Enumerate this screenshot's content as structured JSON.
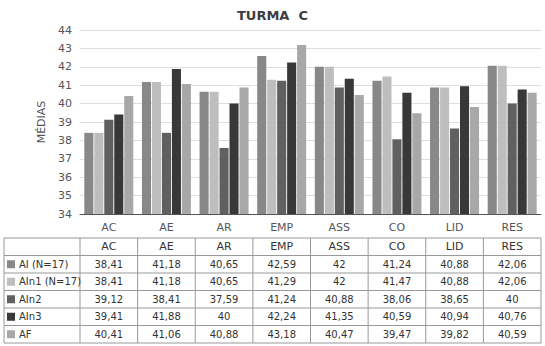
{
  "chart_data": {
    "type": "bar",
    "title": "TURMA  C",
    "ylabel": "MÉDIAS",
    "categories": [
      "AC",
      "AE",
      "AR",
      "EMP",
      "ASS",
      "CO",
      "LID",
      "RES"
    ],
    "series": [
      {
        "name": "AI (N=17)",
        "color": "#888888",
        "values": [
          38.41,
          41.18,
          40.65,
          42.59,
          42,
          41.24,
          40.88,
          42.06
        ],
        "value_labels": [
          "38,41",
          "41,18",
          "40,65",
          "42,59",
          "42",
          "41,24",
          "40,88",
          "42,06"
        ]
      },
      {
        "name": "AIn1 (N=17)",
        "color": "#BEBEBE",
        "values": [
          38.41,
          41.18,
          40.65,
          41.29,
          42,
          41.47,
          40.88,
          42.06
        ],
        "value_labels": [
          "38,41",
          "41,18",
          "40,65",
          "41,29",
          "42",
          "41,47",
          "40,88",
          "42,06"
        ]
      },
      {
        "name": "AIn2",
        "color": "#606060",
        "values": [
          39.12,
          38.41,
          37.59,
          41.24,
          40.88,
          38.06,
          38.65,
          40
        ],
        "value_labels": [
          "39,12",
          "38,41",
          "37,59",
          "41,24",
          "40,88",
          "38,06",
          "38,65",
          "40"
        ]
      },
      {
        "name": "AIn3",
        "color": "#383838",
        "values": [
          39.41,
          41.88,
          40,
          42.24,
          41.35,
          40.59,
          40.94,
          40.76
        ],
        "value_labels": [
          "39,41",
          "41,88",
          "40",
          "42,24",
          "41,35",
          "40,59",
          "40,94",
          "40,76"
        ]
      },
      {
        "name": "AF",
        "color": "#A8A8A8",
        "values": [
          40.41,
          41.06,
          40.88,
          43.18,
          40.47,
          39.47,
          39.82,
          40.59
        ],
        "value_labels": [
          "40,41",
          "41,06",
          "40,88",
          "43,18",
          "40,47",
          "39,47",
          "39,82",
          "40,59"
        ]
      }
    ],
    "ylim": [
      34,
      44
    ],
    "yticks": [
      34,
      35,
      36,
      37,
      38,
      39,
      40,
      41,
      42,
      43,
      44
    ],
    "grid": true
  }
}
